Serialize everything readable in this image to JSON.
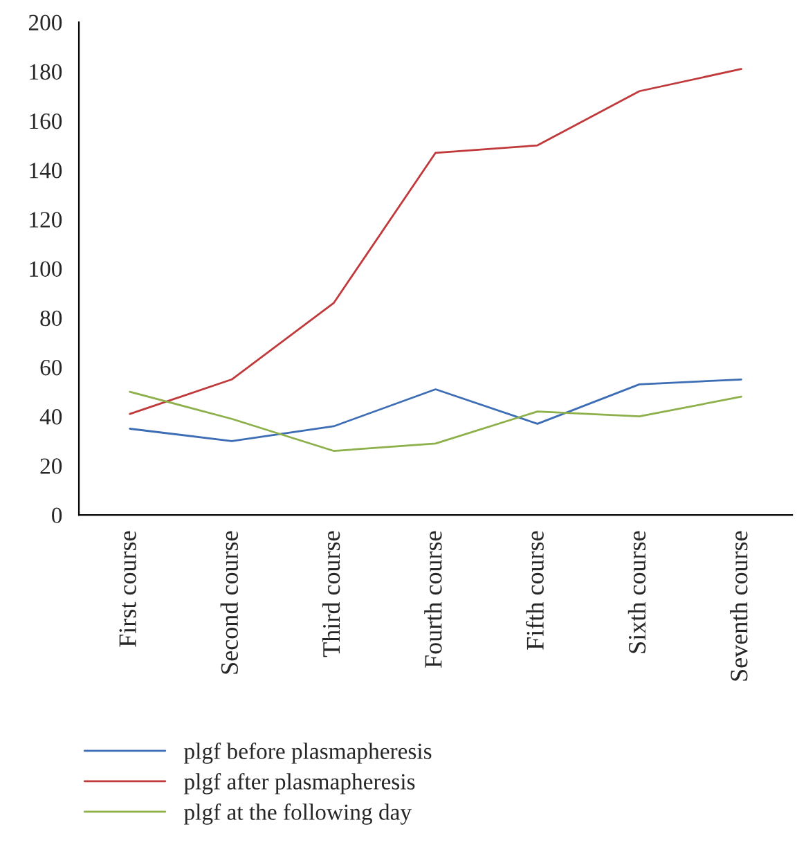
{
  "chart_data": {
    "type": "line",
    "categories": [
      "First course",
      "Second course",
      "Third course",
      "Fourth course",
      "Fifth course",
      "Sixth course",
      "Seventh course"
    ],
    "series": [
      {
        "name": "plgf before plasmapheresis",
        "color": "#3d6db5",
        "values": [
          35,
          30,
          36,
          51,
          37,
          53,
          55
        ]
      },
      {
        "name": "plgf after plasmapheresis",
        "color": "#c0393b",
        "values": [
          41,
          55,
          86,
          147,
          150,
          172,
          181
        ]
      },
      {
        "name": "plgf at the following day",
        "color": "#8db04a",
        "values": [
          50,
          39,
          26,
          29,
          42,
          40,
          48
        ]
      }
    ],
    "ylim": [
      0,
      200
    ],
    "yticks": [
      0,
      20,
      40,
      60,
      80,
      100,
      120,
      140,
      160,
      180,
      200
    ],
    "legend": "bottom",
    "grid": false,
    "marker": "none",
    "line_style": "solid"
  }
}
